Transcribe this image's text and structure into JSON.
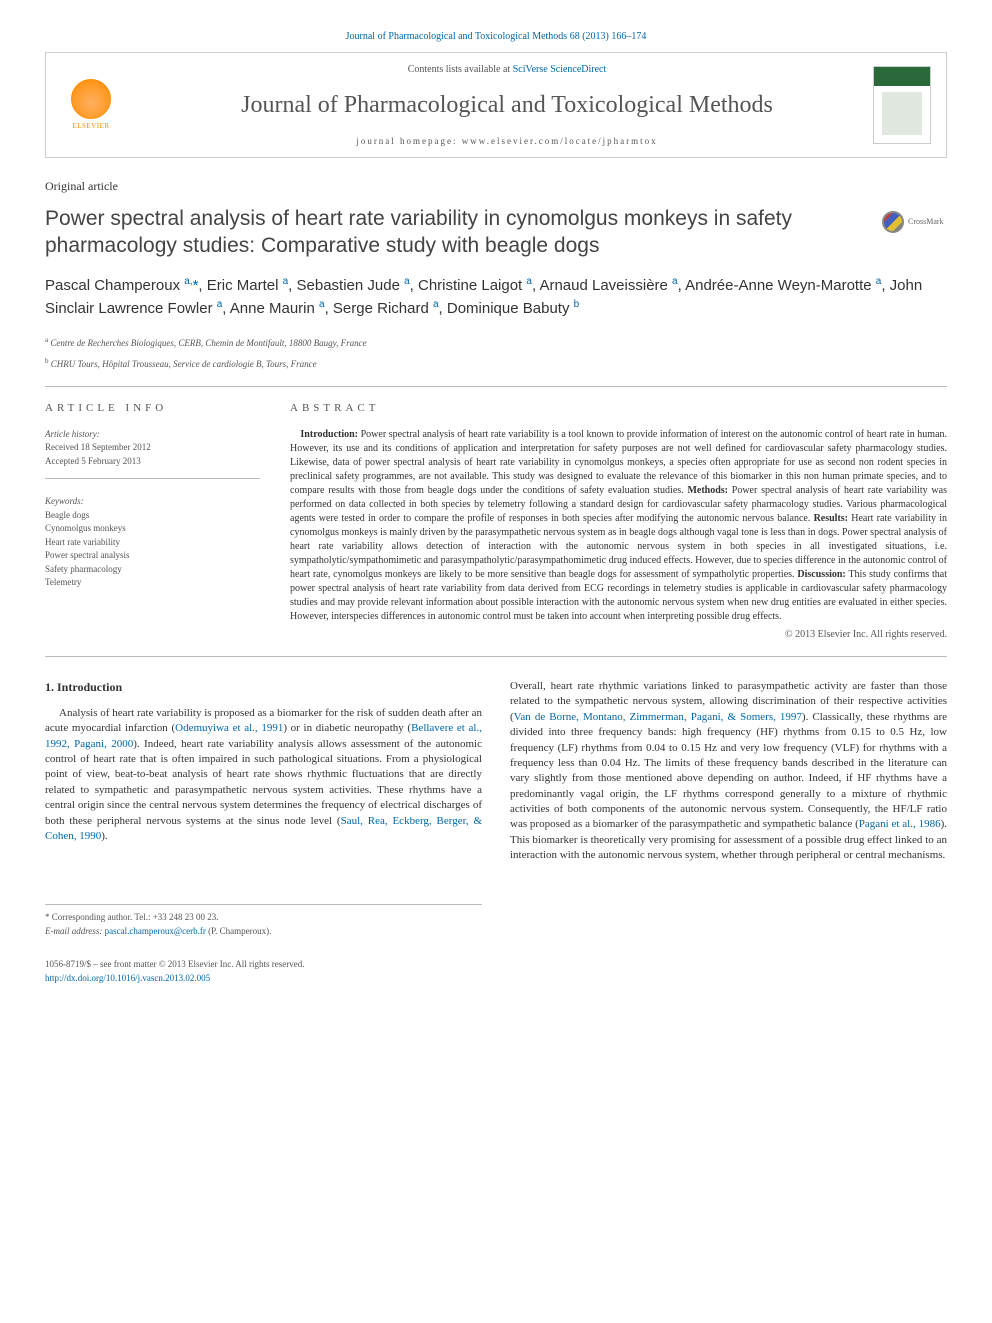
{
  "header": {
    "citation": "Journal of Pharmacological and Toxicological Methods 68 (2013) 166–174",
    "contents_prefix": "Contents lists available at ",
    "contents_link": "SciVerse ScienceDirect",
    "journal_title": "Journal of Pharmacological and Toxicological Methods",
    "homepage_prefix": "journal homepage: ",
    "homepage_url": "www.elsevier.com/locate/jpharmtox",
    "elsevier_label": "ELSEVIER"
  },
  "article": {
    "type": "Original article",
    "title": "Power spectral analysis of heart rate variability in cynomolgus monkeys in safety pharmacology studies: Comparative study with beagle dogs",
    "crossmark_label": "CrossMark"
  },
  "authors_html": "Pascal Champeroux <sup>a,</sup><span class=\"star\">*</span>, Eric Martel <sup>a</sup>, Sebastien Jude <sup>a</sup>, Christine Laigot <sup>a</sup>, Arnaud Laveissière <sup>a</sup>, Andrée-Anne Weyn-Marotte <sup>a</sup>, John Sinclair Lawrence Fowler <sup>a</sup>, Anne Maurin <sup>a</sup>, Serge Richard <sup>a</sup>, Dominique Babuty <sup>b</sup>",
  "affiliations": [
    {
      "sup": "a",
      "text": "Centre de Recherches Biologiques, CERB, Chemin de Montifault, 18800 Baugy, France"
    },
    {
      "sup": "b",
      "text": "CHRU Tours, Hôpital Trousseau, Service de cardiologie B, Tours, France"
    }
  ],
  "meta": {
    "info_label": "ARTICLE INFO",
    "history_head": "Article history:",
    "received": "Received 18 September 2012",
    "accepted": "Accepted 5 February 2013",
    "keywords_head": "Keywords:",
    "keywords": [
      "Beagle dogs",
      "Cynomolgus monkeys",
      "Heart rate variability",
      "Power spectral analysis",
      "Safety pharmacology",
      "Telemetry"
    ]
  },
  "abstract": {
    "label": "ABSTRACT",
    "intro_head": "Introduction:",
    "intro": " Power spectral analysis of heart rate variability is a tool known to provide information of interest on the autonomic control of heart rate in human. However, its use and its conditions of application and interpretation for safety purposes are not well defined for cardiovascular safety pharmacology studies. Likewise, data of power spectral analysis of heart rate variability in cynomolgus monkeys, a species often appropriate for use as second non rodent species in preclinical safety programmes, are not available. This study was designed to evaluate the relevance of this biomarker in this non human primate species, and to compare results with those from beagle dogs under the conditions of safety evaluation studies. ",
    "methods_head": "Methods:",
    "methods": " Power spectral analysis of heart rate variability was performed on data collected in both species by telemetry following a standard design for cardiovascular safety pharmacology studies. Various pharmacological agents were tested in order to compare the profile of responses in both species after modifying the autonomic nervous balance. ",
    "results_head": "Results:",
    "results": " Heart rate variability in cynomolgus monkeys is mainly driven by the parasympathetic nervous system as in beagle dogs although vagal tone is less than in dogs. Power spectral analysis of heart rate variability allows detection of interaction with the autonomic nervous system in both species in all investigated situations, i.e. sympatholytic/sympathomimetic and parasympatholytic/parasympathomimetic drug induced effects. However, due to species difference in the autonomic control of heart rate, cynomolgus monkeys are likely to be more sensitive than beagle dogs for assessment of sympatholytic properties. ",
    "discussion_head": "Discussion:",
    "discussion": " This study confirms that power spectral analysis of heart rate variability from data derived from ECG recordings in telemetry studies is applicable in cardiovascular safety pharmacology studies and may provide relevant information about possible interaction with the autonomic nervous system when new drug entities are evaluated in either species. However, interspecies differences in autonomic control must be taken into account when interpreting possible drug effects.",
    "copyright": "© 2013 Elsevier Inc. All rights reserved."
  },
  "body": {
    "section_heading": "1. Introduction",
    "col1_para": "Analysis of heart rate variability is proposed as a biomarker for the risk of sudden death after an acute myocardial infarction (",
    "col1_ref1": "Odemuyiwa et al., 1991",
    "col1_para2": ") or in diabetic neuropathy (",
    "col1_ref2": "Bellavere et al., 1992, Pagani, 2000",
    "col1_para3": "). Indeed, heart rate variability analysis allows assessment of the autonomic control of heart rate that is often impaired in such pathological situations. From a physiological point of view, beat-to-beat analysis of heart rate shows rhythmic fluctuations that are directly related to sympathetic and parasympathetic nervous system activities. These rhythms have a central origin since the central nervous system determines the frequency of electrical discharges of both these peripheral nervous systems at the sinus node level (",
    "col1_ref3": "Saul, Rea, Eckberg, Berger, & Cohen, 1990",
    "col1_para4": ").",
    "col2_para": "Overall, heart rate rhythmic variations linked to parasympathetic activity are faster than those related to the sympathetic nervous system, allowing discrimination of their respective activities (",
    "col2_ref1": "Van de Borne, Montano, Zimmerman, Pagani, & Somers, 1997",
    "col2_para2": "). Classically, these rhythms are divided into three frequency bands: high frequency (HF) rhythms from 0.15 to 0.5 Hz, low frequency (LF) rhythms from 0.04 to 0.15 Hz and very low frequency (VLF) for rhythms with a frequency less than 0.04 Hz. The limits of these frequency bands described in the literature can vary slightly from those mentioned above depending on author. Indeed, if HF rhythms have a predominantly vagal origin, the LF rhythms correspond generally to a mixture of rhythmic activities of both components of the autonomic nervous system. Consequently, the HF/LF ratio was proposed as a biomarker of the parasympathetic and sympathetic balance (",
    "col2_ref2": "Pagani et al., 1986",
    "col2_para3": "). This biomarker is theoretically very promising for assessment of a possible drug effect linked to an interaction with the autonomic nervous system, whether through peripheral or central mechanisms."
  },
  "footnote": {
    "corr": "* Corresponding author. Tel.: +33 248 23 00 23.",
    "email_label": "E-mail address: ",
    "email": "pascal.champeroux@cerb.fr",
    "email_suffix": " (P. Champeroux)."
  },
  "footer": {
    "line1": "1056-8719/$ – see front matter © 2013 Elsevier Inc. All rights reserved.",
    "doi": "http://dx.doi.org/10.1016/j.vascn.2013.02.005"
  },
  "colors": {
    "link": "#0066aa",
    "text": "#333333",
    "muted": "#555555",
    "rule": "#bbbbbb",
    "elsevier_orange": "#ff8c00"
  }
}
